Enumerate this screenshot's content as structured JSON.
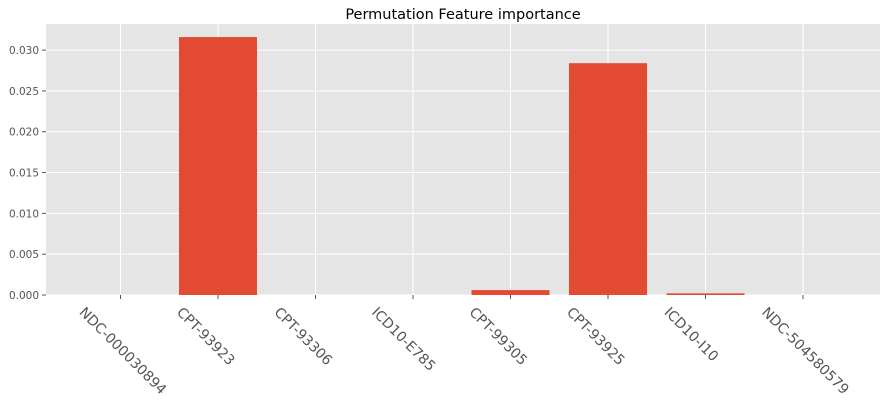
{
  "chart_data": {
    "type": "bar",
    "title": "Permutation Feature importance",
    "xlabel": "",
    "ylabel": "",
    "categories": [
      "NDC-000030894",
      "CPT-93923",
      "CPT-93306",
      "ICD10-E785",
      "CPT-99305",
      "CPT-93925",
      "ICD10-I10",
      "NDC-504580579"
    ],
    "values": [
      0.0,
      0.0316,
      0.0,
      0.0,
      0.0006,
      0.0284,
      0.0002,
      0.0
    ],
    "ylim": [
      0,
      0.0332
    ],
    "yticks": [
      0.0,
      0.005,
      0.01,
      0.015,
      0.02,
      0.025,
      0.03
    ],
    "ytick_labels": [
      "0.000",
      "0.005",
      "0.010",
      "0.015",
      "0.020",
      "0.025",
      "0.030"
    ],
    "grid": true,
    "colors": {
      "bar": "#E24A33",
      "plot_bg": "#E5E5E5",
      "grid": "#FFFFFF",
      "tick_text": "#555555"
    }
  }
}
